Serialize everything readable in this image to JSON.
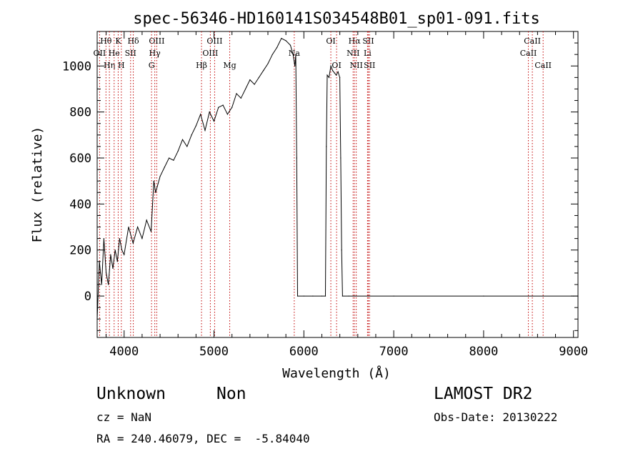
{
  "chart_data": {
    "type": "line",
    "title": "spec-56346-HD160141S034548B01_sp01-091.fits",
    "xlabel": "Wavelength (Å)",
    "ylabel": "Flux (relative)",
    "xlim": [
      3700,
      9050
    ],
    "ylim": [
      -180,
      1150
    ],
    "xticks": [
      4000,
      5000,
      6000,
      7000,
      8000,
      9000
    ],
    "yticks": [
      0,
      200,
      400,
      600,
      800,
      1000
    ],
    "grid": false,
    "series": [
      {
        "x": [
          3700,
          3725,
          3750,
          3775,
          3800,
          3825,
          3850,
          3875,
          3900,
          3925,
          3950,
          3975,
          4000,
          4050,
          4100,
          4150,
          4200,
          4250,
          4300,
          4330,
          4350,
          4400,
          4450,
          4500,
          4550,
          4600,
          4650,
          4700,
          4750,
          4800,
          4850,
          4900,
          4950,
          5000,
          5050,
          5100,
          5150,
          5200,
          5250,
          5300,
          5350,
          5400,
          5450,
          5500,
          5550,
          5600,
          5650,
          5700,
          5750,
          5800,
          5850,
          5880,
          5900,
          5910,
          5920,
          5930,
          6000,
          6100,
          6200,
          6240,
          6250,
          6260,
          6280,
          6300,
          6320,
          6340,
          6360,
          6380,
          6400,
          6410,
          6420,
          6430,
          6500,
          7000,
          8000,
          9000,
          9050
        ],
        "y": [
          -100,
          150,
          50,
          250,
          100,
          50,
          180,
          120,
          200,
          150,
          250,
          200,
          180,
          300,
          230,
          300,
          250,
          330,
          280,
          500,
          450,
          520,
          560,
          600,
          590,
          630,
          680,
          650,
          700,
          740,
          790,
          720,
          800,
          760,
          820,
          830,
          790,
          820,
          880,
          860,
          900,
          940,
          920,
          950,
          980,
          1010,
          1050,
          1080,
          1120,
          1110,
          1090,
          1050,
          1000,
          1050,
          600,
          0,
          0,
          0,
          0,
          0,
          650,
          960,
          950,
          1000,
          980,
          970,
          960,
          975,
          950,
          600,
          200,
          0,
          0,
          0,
          0,
          0,
          0
        ]
      }
    ],
    "line_markers": [
      {
        "label": "Hθ",
        "wave": 3798,
        "row": 0
      },
      {
        "label": "OII",
        "wave": 3727,
        "row": 1
      },
      {
        "label": "Hη",
        "wave": 3836,
        "row": 2
      },
      {
        "label": "K",
        "wave": 3934,
        "row": 0
      },
      {
        "label": "He",
        "wave": 3889,
        "row": 1
      },
      {
        "label": "H",
        "wave": 3969,
        "row": 2
      },
      {
        "label": "Hδ",
        "wave": 4102,
        "row": 0
      },
      {
        "label": "SII",
        "wave": 4072,
        "row": 1
      },
      {
        "label": "OIII",
        "wave": 4363,
        "row": 0
      },
      {
        "label": "Hγ",
        "wave": 4341,
        "row": 1
      },
      {
        "label": "G",
        "wave": 4305,
        "row": 2
      },
      {
        "label": "Hβ",
        "wave": 4861,
        "row": 2
      },
      {
        "label": "OIII",
        "wave": 5007,
        "row": 0
      },
      {
        "label": "OIII",
        "wave": 4959,
        "row": 1
      },
      {
        "label": "Mg",
        "wave": 5175,
        "row": 2
      },
      {
        "label": "Na",
        "wave": 5893,
        "row": 1
      },
      {
        "label": "OI",
        "wave": 6300,
        "row": 0
      },
      {
        "label": "OI",
        "wave": 6364,
        "row": 2
      },
      {
        "label": "Hα",
        "wave": 6563,
        "row": 0
      },
      {
        "label": "NII",
        "wave": 6548,
        "row": 1
      },
      {
        "label": "NII",
        "wave": 6583,
        "row": 2
      },
      {
        "label": "SII",
        "wave": 6717,
        "row": 0
      },
      {
        "label": "Li",
        "wave": 6708,
        "row": 1
      },
      {
        "label": "SII",
        "wave": 6731,
        "row": 2
      },
      {
        "label": "CaII",
        "wave": 8542,
        "row": 0
      },
      {
        "label": "CaII",
        "wave": 8498,
        "row": 1
      },
      {
        "label": "CaII",
        "wave": 8662,
        "row": 2
      }
    ]
  },
  "info": {
    "class": "Unknown",
    "subclass": "Non",
    "survey": "LAMOST DR2",
    "cz": "cz = NaN",
    "obs_date": "Obs-Date: 20130222",
    "coords": "RA = 240.46079, DEC =  -5.84040"
  }
}
